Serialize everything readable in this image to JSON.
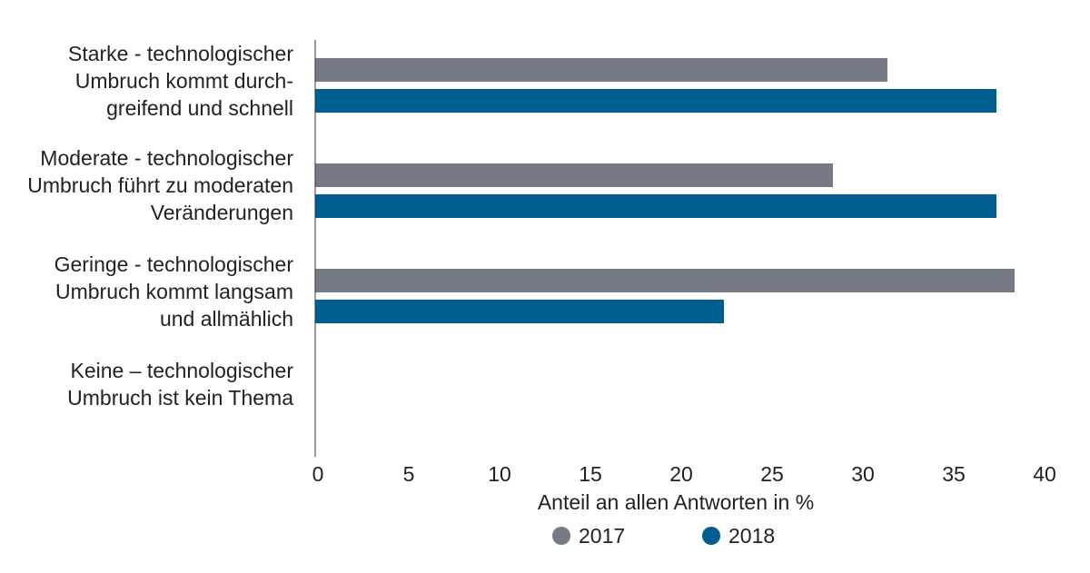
{
  "chart_data": {
    "type": "bar",
    "orientation": "horizontal",
    "categories": [
      [
        "Starke -  technologischer",
        "Umbruch kommt durch-",
        "greifend und schnell"
      ],
      [
        "Moderate - technologischer",
        "Umbruch führt zu moderaten",
        "Veränderungen"
      ],
      [
        "Geringe - technologischer",
        "Umbruch kommt langsam",
        "und allmählich"
      ],
      [
        "Keine – technologischer",
        "Umbruch ist kein Thema"
      ]
    ],
    "series": [
      {
        "name": "2017",
        "color": "#767a87",
        "values": [
          31.5,
          28.5,
          38.5,
          0
        ]
      },
      {
        "name": "2018",
        "color": "#005e8e",
        "values": [
          37.5,
          37.5,
          22.5,
          0
        ]
      }
    ],
    "xlabel": "Anteil an allen Antworten in %",
    "ylabel": "",
    "xlim": [
      0,
      40
    ],
    "xticks": [
      0,
      5,
      10,
      15,
      20,
      25,
      30,
      35,
      40
    ],
    "grid": false,
    "legend": {
      "placement": "bottom-center",
      "entries": [
        "2017",
        "2018"
      ]
    }
  }
}
